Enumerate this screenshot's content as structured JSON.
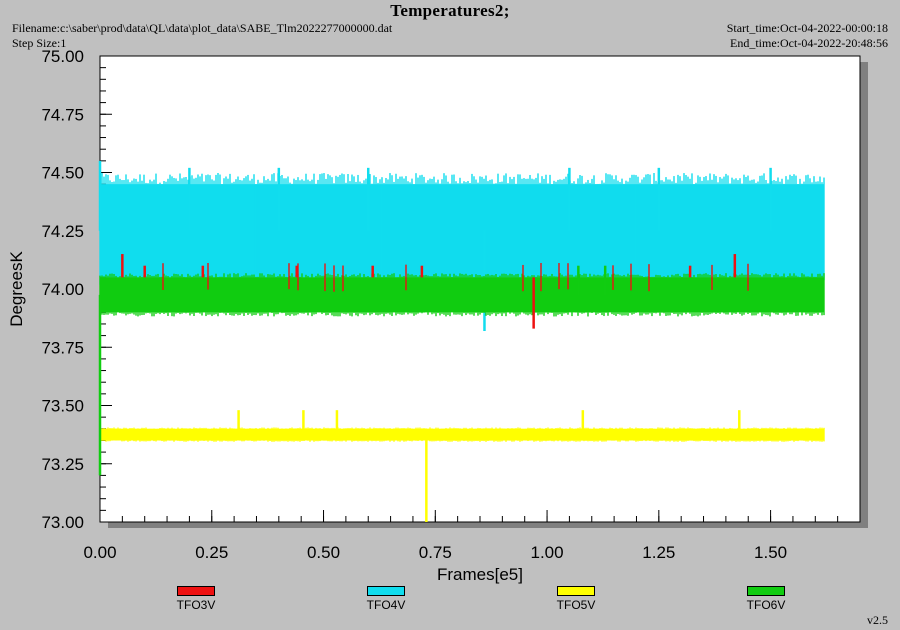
{
  "header": {
    "title": "Temperatures2;",
    "filename": "Filename:c:\\saber\\prod\\data\\QL\\data\\plot_data\\SABE_Tlm2022277000000.dat",
    "step_size": "Step Size:1",
    "start_time": "Start_time:Oct-04-2022-00:00:18",
    "end_time": "End_time:Oct-04-2022-20:48:56"
  },
  "version": "v2.5",
  "colors": {
    "background": "#c0c0c0",
    "plot_area": "#ffffff",
    "TFO3V": "#ee1111",
    "TFO4V": "#11ddee",
    "TFO5V": "#ffff00",
    "TFO6V": "#11cc11"
  },
  "chart_data": {
    "type": "line",
    "title": "Temperatures2;",
    "xlabel": "Frames[e5]",
    "ylabel": "DegreesK",
    "xlim": [
      0,
      1.7
    ],
    "ylim": [
      73.0,
      75.0
    ],
    "x_ticks": [
      "0.00",
      "0.25",
      "0.50",
      "0.75",
      "1.00",
      "1.25",
      "1.50"
    ],
    "y_ticks": [
      "73.00",
      "73.25",
      "73.50",
      "73.75",
      "74.00",
      "74.25",
      "74.50",
      "74.75",
      "75.00"
    ],
    "grid": false,
    "legend_position": "bottom",
    "series": [
      {
        "name": "TFO3V",
        "x_range": [
          0,
          1.62
        ],
        "typical_range": [
          74.0,
          74.1
        ],
        "spikes": [
          {
            "x": 0.05,
            "y": 74.15
          },
          {
            "x": 0.1,
            "y": 74.1
          },
          {
            "x": 0.23,
            "y": 74.1
          },
          {
            "x": 0.44,
            "y": 74.1
          },
          {
            "x": 0.61,
            "y": 74.1
          },
          {
            "x": 0.72,
            "y": 74.1
          },
          {
            "x": 0.97,
            "y": 73.83
          },
          {
            "x": 1.32,
            "y": 74.1
          },
          {
            "x": 1.42,
            "y": 74.15
          }
        ]
      },
      {
        "name": "TFO4V",
        "x_range": [
          0,
          1.62
        ],
        "typical_range": [
          74.05,
          74.45
        ],
        "spikes": [
          {
            "x": 0.0,
            "y": 74.55
          },
          {
            "x": 0.2,
            "y": 74.52
          },
          {
            "x": 0.4,
            "y": 74.52
          },
          {
            "x": 0.6,
            "y": 74.52
          },
          {
            "x": 0.86,
            "y": 73.82
          },
          {
            "x": 1.05,
            "y": 74.52
          },
          {
            "x": 1.25,
            "y": 74.52
          },
          {
            "x": 1.5,
            "y": 74.52
          }
        ]
      },
      {
        "name": "TFO5V",
        "x_range": [
          0,
          1.62
        ],
        "typical_range": [
          73.35,
          73.4
        ],
        "spikes": [
          {
            "x": 0.31,
            "y": 73.48
          },
          {
            "x": 0.455,
            "y": 73.48
          },
          {
            "x": 0.53,
            "y": 73.48
          },
          {
            "x": 0.73,
            "y": 73.0
          },
          {
            "x": 1.08,
            "y": 73.48
          },
          {
            "x": 1.43,
            "y": 73.48
          }
        ]
      },
      {
        "name": "TFO6V",
        "x_range": [
          0,
          1.62
        ],
        "typical_range": [
          73.9,
          74.05
        ],
        "spikes": [
          {
            "x": 0.0,
            "y": 73.2
          },
          {
            "x": 1.07,
            "y": 74.1
          },
          {
            "x": 1.13,
            "y": 74.1
          }
        ]
      }
    ]
  }
}
